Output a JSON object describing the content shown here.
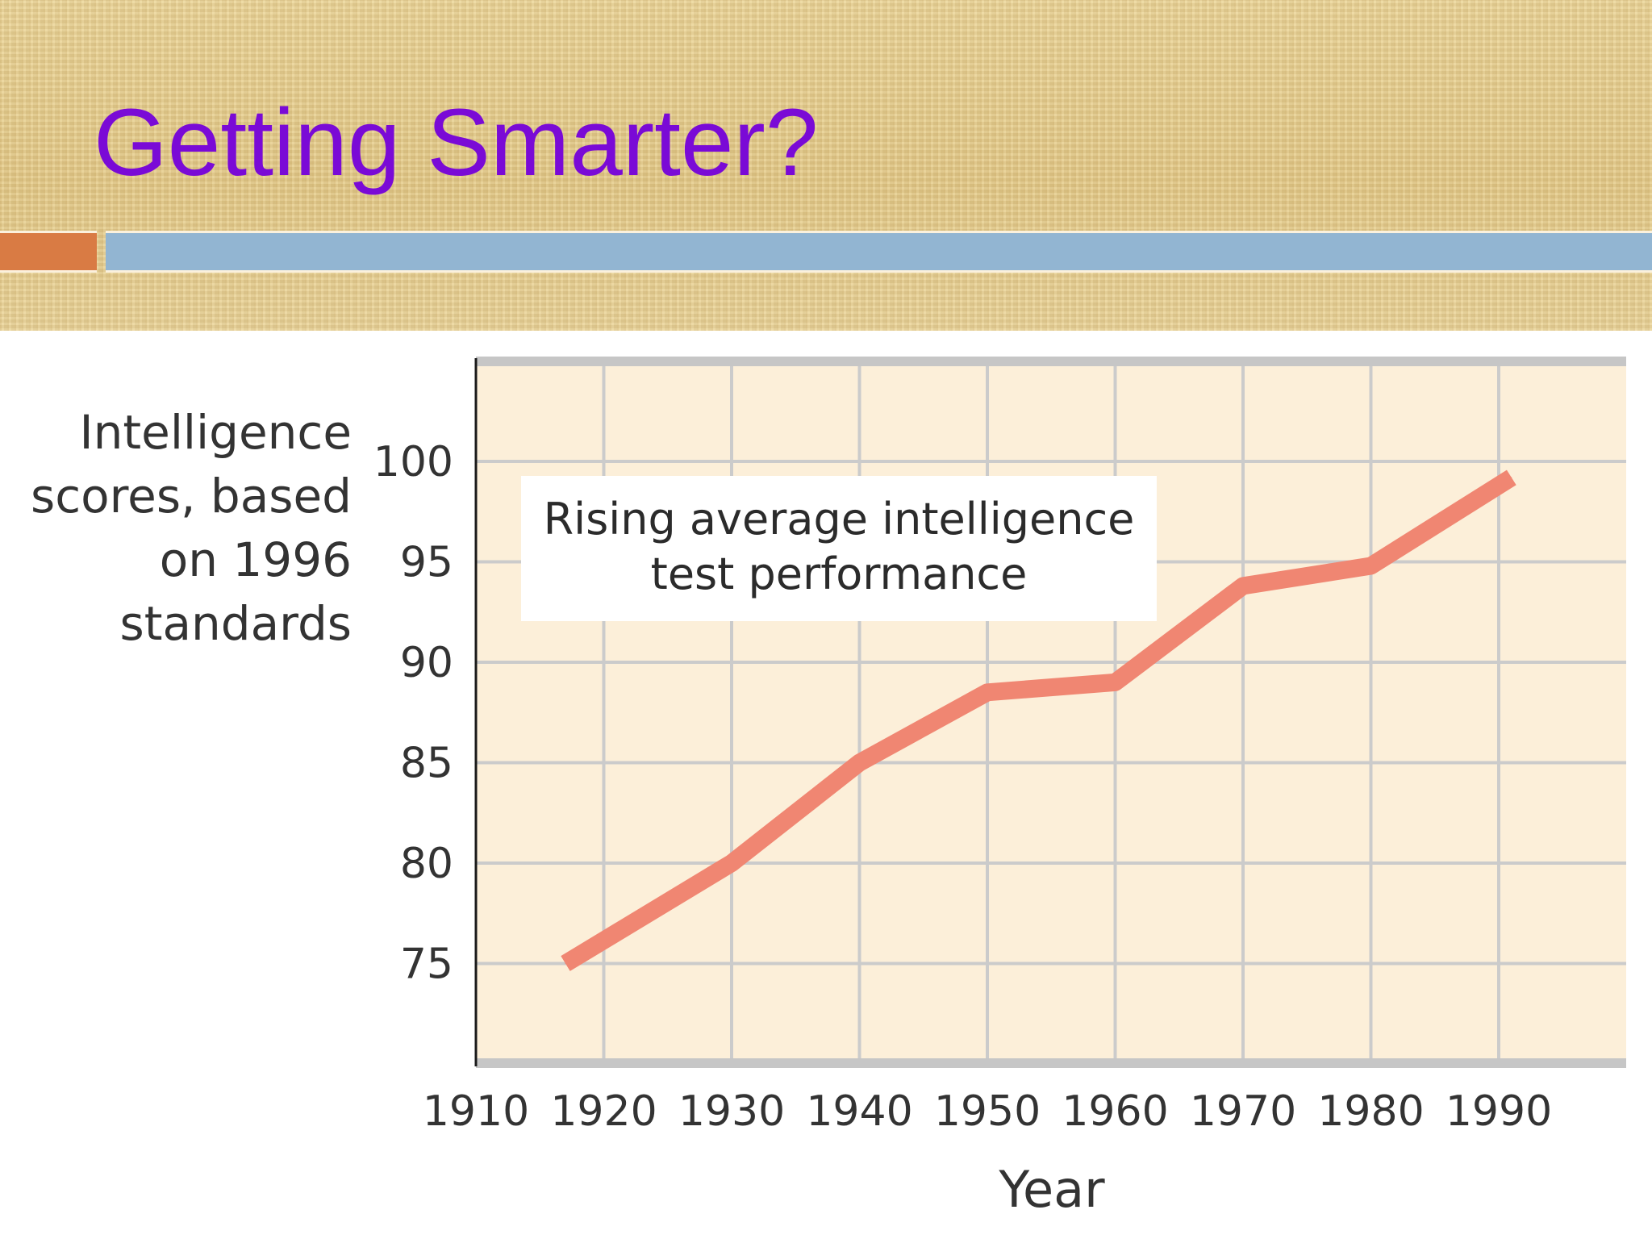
{
  "slide": {
    "title": "Getting Smarter?",
    "colors": {
      "title": "#7a0ad6",
      "accent_left": "#d97b44",
      "accent_bar": "#92b5d2",
      "header_bg": "#e6cf93"
    }
  },
  "chart_data": {
    "type": "line",
    "title": "",
    "ylabel_lines": [
      "Intelligence",
      "scores, based",
      "on 1996",
      "standards"
    ],
    "xlabel": "Year",
    "annotation_lines": [
      "Rising average intelligence",
      "test performance"
    ],
    "x_ticks": [
      1910,
      1920,
      1930,
      1940,
      1950,
      1960,
      1970,
      1980,
      1990
    ],
    "y_ticks": [
      75,
      80,
      85,
      90,
      95,
      100
    ],
    "xlim": [
      1910,
      2000
    ],
    "ylim": [
      70,
      105
    ],
    "grid": true,
    "series": [
      {
        "color": "#f08672",
        "points": [
          {
            "x": 1917,
            "y": 75
          },
          {
            "x": 1930,
            "y": 80
          },
          {
            "x": 1940,
            "y": 85
          },
          {
            "x": 1950,
            "y": 88.5
          },
          {
            "x": 1960,
            "y": 89
          },
          {
            "x": 1970,
            "y": 93.8
          },
          {
            "x": 1980,
            "y": 94.8
          },
          {
            "x": 1991,
            "y": 99.2
          }
        ]
      }
    ]
  }
}
